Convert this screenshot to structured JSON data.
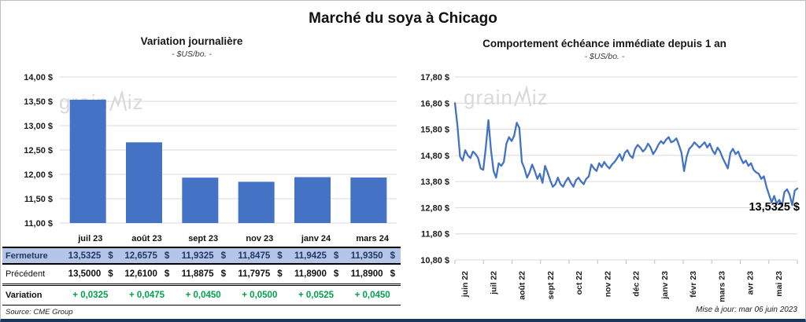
{
  "page": {
    "title": "Marché du soya à Chicago",
    "source": "Source: CME Group",
    "updated": "Mise à jour: mar 06 juin 2023",
    "watermark": {
      "part1": "grain",
      "part2": "iz"
    }
  },
  "colors": {
    "accent_blue": "#4472C4",
    "grid": "#D9D9D9",
    "axis_tick": "#BFBFBF",
    "fermeture_bg": "#B5C5E7",
    "fermeture_text": "#1F3864",
    "variation_green": "#00A14B",
    "bottom_bar": "#17375E",
    "watermark": "#D9D9D9"
  },
  "table": {
    "currency": "$",
    "months": [
      "juil 23",
      "août 23",
      "sept 23",
      "nov 23",
      "janv 24",
      "mars 24"
    ],
    "rows": [
      {
        "label": "Fermeture",
        "cells": [
          "13,5325",
          "12,6575",
          "11,9325",
          "11,8475",
          "11,9425",
          "11,9350"
        ],
        "with_currency": true,
        "kind": "ferm"
      },
      {
        "label": "Précédent",
        "cells": [
          "13,5000",
          "12,6100",
          "11,8875",
          "11,7975",
          "11,8900",
          "11,8900"
        ],
        "with_currency": true,
        "kind": "prec"
      },
      {
        "label": "Variation",
        "cells": [
          "+ 0,0325",
          "+ 0,0475",
          "+ 0,0450",
          "+ 0,0500",
          "+ 0,0525",
          "+ 0,0450"
        ],
        "with_currency": false,
        "kind": "vari"
      }
    ]
  },
  "chart_data": [
    {
      "type": "bar",
      "title": "Variation journalière",
      "subtitle": "- $US/bo. -",
      "categories": [
        "juil 23",
        "août 23",
        "sept 23",
        "nov 23",
        "janv 24",
        "mars 24"
      ],
      "values": [
        13.5325,
        12.6575,
        11.9325,
        11.8475,
        11.9425,
        11.935
      ],
      "ylabel": "$US/bo.",
      "ylim": [
        11.0,
        14.0
      ],
      "ytick_values": [
        14.0,
        13.5,
        13.0,
        12.5,
        12.0,
        11.5,
        11.0
      ],
      "ytick_labels": [
        "14,00 $",
        "13,50 $",
        "13,00 $",
        "12,50 $",
        "12,00 $",
        "11,50 $",
        "11,00 $"
      ],
      "grid": true,
      "legend": false
    },
    {
      "type": "line",
      "title": "Comportement échéance immédiate depuis 1 an",
      "subtitle": "- $US/bo. -",
      "x_labels": [
        "juin 22",
        "juil 22",
        "août 22",
        "sept 22",
        "oct 22",
        "nov 22",
        "déc 22",
        "janv 23",
        "févr 23",
        "mars 23",
        "avr 23",
        "mai 23"
      ],
      "ylabel": "$US/bo.",
      "ylim": [
        10.8,
        17.8
      ],
      "ytick_values": [
        17.8,
        16.8,
        15.8,
        14.8,
        13.8,
        12.8,
        11.8,
        10.8
      ],
      "ytick_labels": [
        "17,80 $",
        "16,80 $",
        "15,80 $",
        "14,80 $",
        "13,80 $",
        "12,80 $",
        "11,80 $",
        "10,80 $"
      ],
      "last_value_label": "13,5325 $",
      "grid": true,
      "legend": false,
      "values": [
        16.8,
        15.9,
        14.75,
        14.6,
        15.0,
        14.8,
        14.7,
        14.95,
        14.85,
        14.7,
        14.3,
        14.25,
        15.1,
        16.15,
        15.0,
        14.2,
        13.95,
        14.5,
        14.4,
        14.55,
        15.25,
        15.5,
        15.35,
        15.55,
        16.05,
        15.85,
        14.55,
        14.3,
        13.95,
        14.15,
        14.45,
        14.2,
        13.9,
        14.1,
        13.75,
        14.4,
        14.15,
        13.85,
        13.6,
        13.7,
        13.95,
        13.7,
        13.6,
        13.8,
        13.95,
        13.75,
        13.6,
        13.85,
        13.95,
        13.8,
        13.7,
        13.9,
        14.0,
        14.45,
        14.3,
        14.2,
        14.5,
        14.35,
        14.55,
        14.4,
        14.3,
        14.45,
        14.55,
        14.7,
        14.85,
        14.6,
        14.9,
        15.0,
        14.8,
        14.7,
        15.05,
        15.2,
        15.1,
        14.95,
        15.05,
        15.25,
        15.1,
        14.85,
        15.0,
        15.2,
        15.35,
        15.25,
        15.4,
        15.5,
        15.3,
        15.35,
        15.45,
        15.2,
        14.9,
        14.2,
        14.75,
        15.05,
        15.15,
        15.3,
        15.2,
        15.1,
        15.2,
        15.3,
        15.1,
        15.25,
        15.0,
        14.85,
        15.1,
        14.95,
        14.7,
        14.5,
        14.3,
        14.9,
        15.05,
        14.85,
        14.95,
        14.7,
        14.5,
        14.6,
        14.4,
        14.5,
        14.25,
        14.15,
        14.1,
        13.9,
        14.0,
        13.6,
        13.3,
        13.0,
        13.25,
        12.95,
        13.1,
        12.85,
        13.4,
        13.5,
        13.3,
        12.9,
        13.45,
        13.5325
      ]
    }
  ]
}
